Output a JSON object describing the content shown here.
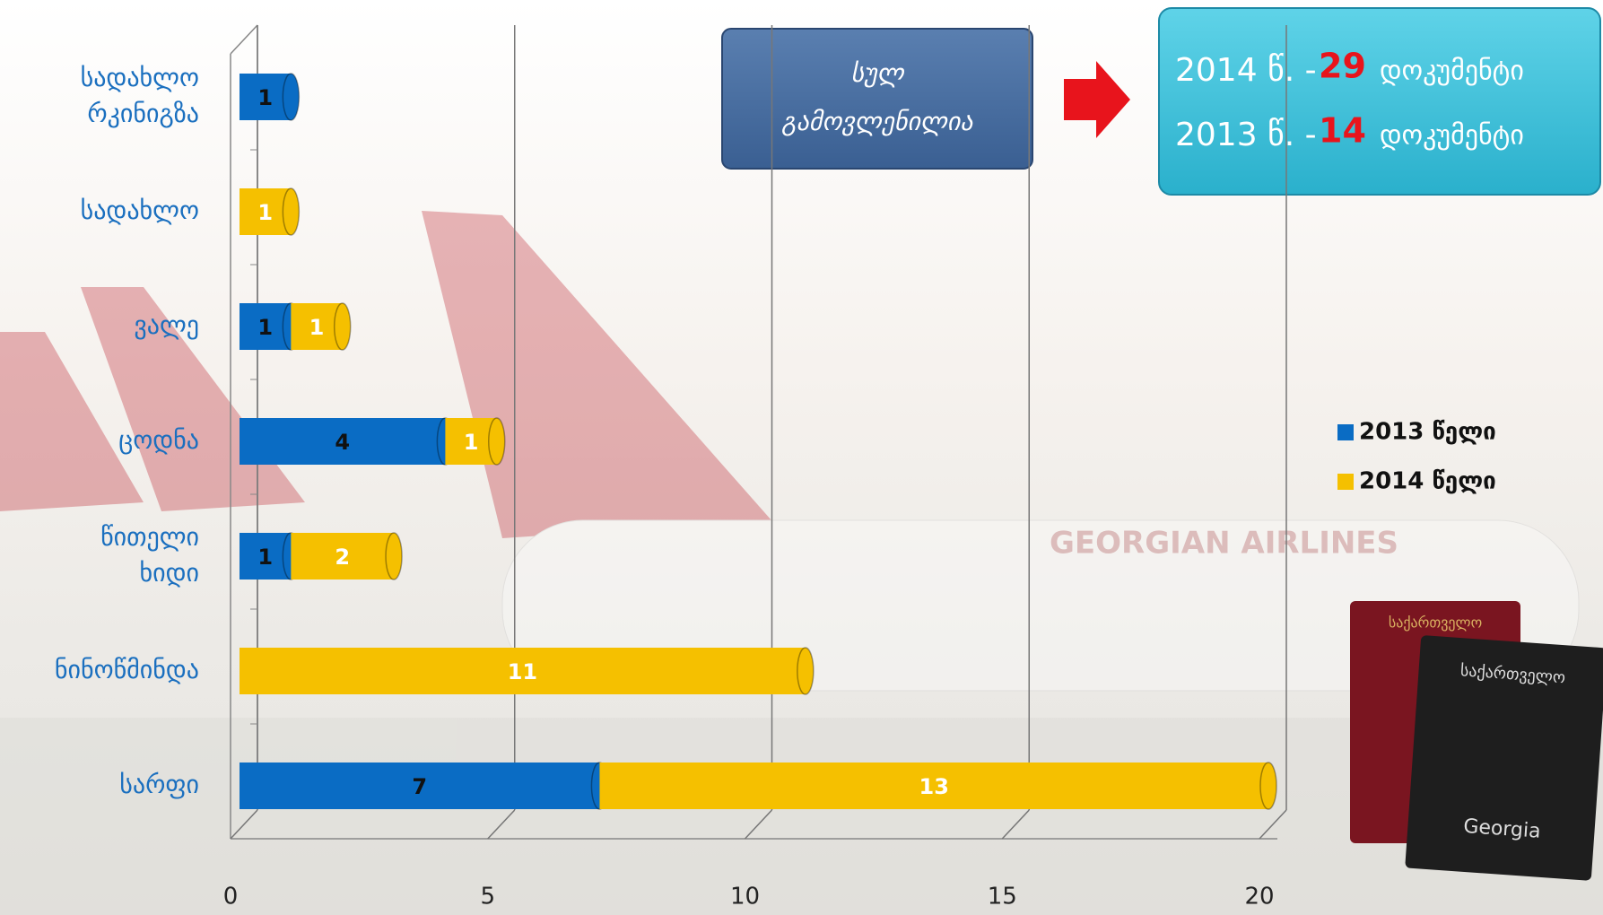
{
  "chart_data": {
    "type": "bar",
    "orientation": "horizontal",
    "stacked": true,
    "categories": [
      "სადახლო რკინიგზა",
      "სადახლო",
      "ვალე",
      "ცოდნა",
      "წითელი ხიდი",
      "ნინოწმინდა",
      "სარფი"
    ],
    "series": [
      {
        "name": "2013 წელი",
        "color": "#0a6cc4",
        "values": [
          1,
          null,
          1,
          4,
          1,
          null,
          7
        ]
      },
      {
        "name": "2014 წელი",
        "color": "#f5c000",
        "values": [
          null,
          1,
          1,
          1,
          2,
          11,
          13
        ]
      }
    ],
    "xlim": [
      0,
      20
    ],
    "xticks": [
      0,
      5,
      10,
      15,
      20
    ],
    "grid": true,
    "legend": "right",
    "callout": "სულ გამოვლენილია",
    "totals": [
      {
        "year": "2014 წ. -",
        "count": 29,
        "unit": "დოკუმენტი"
      },
      {
        "year": "2013 წ. -",
        "count": 14,
        "unit": "დოკუმენტი"
      }
    ],
    "background_text": "GEORGIAN AIRLINES",
    "passport_texts": [
      "საქართველო",
      "Georgia"
    ]
  }
}
